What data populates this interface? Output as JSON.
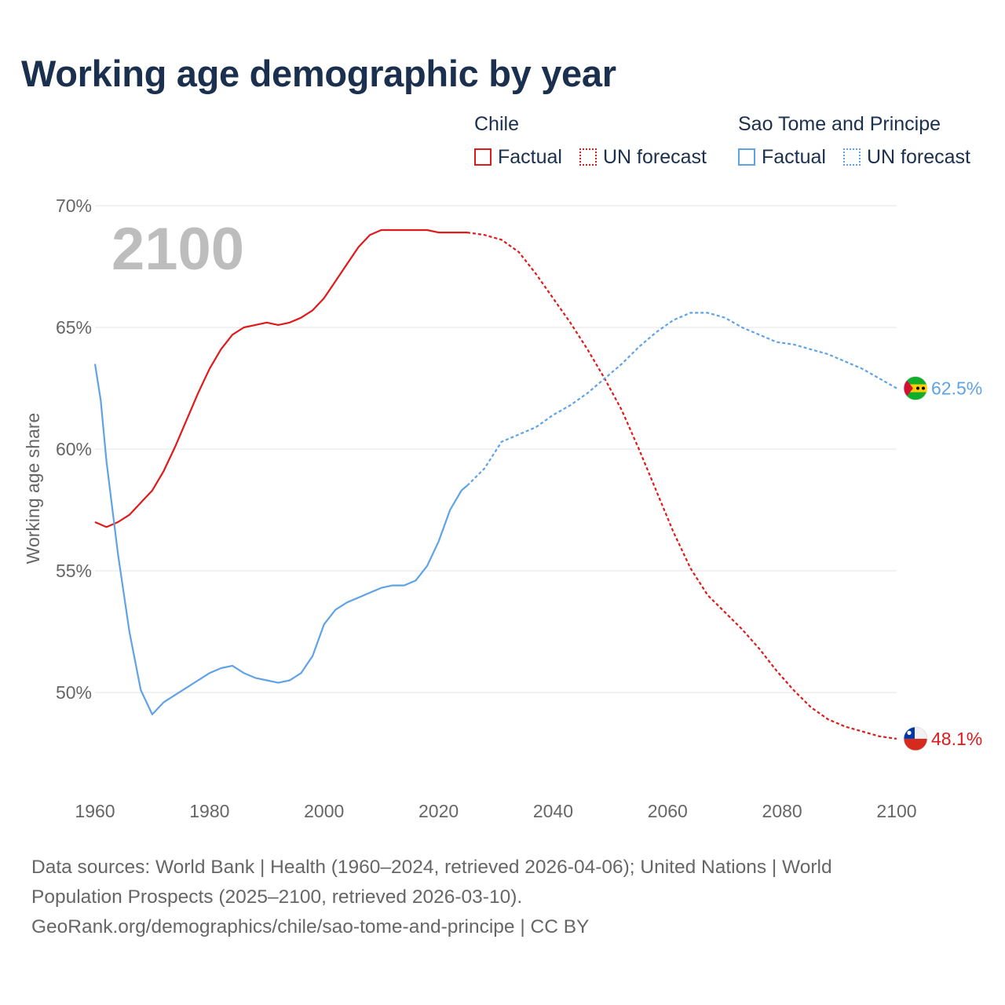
{
  "title": "Working age demographic by year",
  "legend": {
    "groups": [
      {
        "name": "Chile",
        "color": "#e0191b",
        "factual_label": "Factual",
        "forecast_label": "UN forecast"
      },
      {
        "name": "Sao Tome and Principe",
        "color": "#5fa3e6",
        "factual_label": "Factual",
        "forecast_label": "UN forecast"
      }
    ]
  },
  "year_overlay": "2100",
  "footer": {
    "line1": "Data sources: World Bank | Health (1960–2024, retrieved 2026-04-06); United Nations | World",
    "line2": "Population Prospects (2025–2100, retrieved 2026-03-10).",
    "line3": "GeoRank.org/demographics/chile/sao-tome-and-principe | CC BY"
  },
  "chart_data": {
    "type": "line",
    "title": "Working age demographic by year",
    "xlabel": "",
    "ylabel": "Working age share",
    "xlim": [
      1960,
      2100
    ],
    "ylim": [
      46.5,
      70
    ],
    "x_ticks": [
      1960,
      1980,
      2000,
      2020,
      2040,
      2060,
      2080,
      2100
    ],
    "x_tick_labels": [
      "1960",
      "1980",
      "2000",
      "2020",
      "2040",
      "2060",
      "2080",
      "2100"
    ],
    "y_ticks": [
      50,
      55,
      60,
      65,
      70
    ],
    "y_tick_labels": [
      "50%",
      "55%",
      "60%",
      "65%",
      "70%"
    ],
    "grid": true,
    "forecast_start": 2025,
    "series": [
      {
        "name": "Chile",
        "color": "#e0191b",
        "end_label": "48.1%",
        "flag": "chile-flag",
        "x": [
          1960,
          1962,
          1964,
          1966,
          1968,
          1970,
          1972,
          1974,
          1976,
          1978,
          1980,
          1982,
          1984,
          1986,
          1988,
          1990,
          1992,
          1994,
          1996,
          1998,
          2000,
          2002,
          2004,
          2006,
          2008,
          2010,
          2012,
          2014,
          2016,
          2018,
          2020,
          2022,
          2024,
          2025,
          2028,
          2031,
          2034,
          2037,
          2040,
          2043,
          2046,
          2049,
          2052,
          2055,
          2058,
          2061,
          2064,
          2067,
          2070,
          2073,
          2076,
          2079,
          2082,
          2085,
          2088,
          2091,
          2094,
          2097,
          2100
        ],
        "values": [
          57.0,
          56.8,
          57.0,
          57.3,
          57.8,
          58.3,
          59.1,
          60.1,
          61.2,
          62.3,
          63.3,
          64.1,
          64.7,
          65.0,
          65.1,
          65.2,
          65.1,
          65.2,
          65.4,
          65.7,
          66.2,
          66.9,
          67.6,
          68.3,
          68.8,
          69.0,
          69.0,
          69.0,
          69.0,
          69.0,
          68.9,
          68.9,
          68.9,
          68.9,
          68.8,
          68.6,
          68.1,
          67.2,
          66.2,
          65.2,
          64.1,
          62.9,
          61.6,
          60.0,
          58.3,
          56.6,
          55.1,
          54.0,
          53.3,
          52.6,
          51.8,
          50.9,
          50.1,
          49.4,
          48.9,
          48.6,
          48.4,
          48.2,
          48.1
        ]
      },
      {
        "name": "Sao Tome and Principe",
        "color": "#5fa3e6",
        "end_label": "62.5%",
        "flag": "sao-tome-flag",
        "x": [
          1960,
          1961,
          1962,
          1964,
          1966,
          1968,
          1970,
          1972,
          1974,
          1976,
          1978,
          1980,
          1982,
          1984,
          1986,
          1988,
          1990,
          1992,
          1994,
          1996,
          1998,
          2000,
          2002,
          2004,
          2006,
          2008,
          2010,
          2012,
          2014,
          2016,
          2018,
          2020,
          2022,
          2024,
          2025,
          2028,
          2031,
          2034,
          2037,
          2040,
          2043,
          2046,
          2049,
          2052,
          2055,
          2058,
          2061,
          2064,
          2067,
          2070,
          2073,
          2076,
          2079,
          2082,
          2085,
          2088,
          2091,
          2094,
          2097,
          2100
        ],
        "values": [
          63.5,
          62.0,
          59.5,
          55.7,
          52.5,
          50.1,
          49.1,
          49.6,
          49.9,
          50.2,
          50.5,
          50.8,
          51.0,
          51.1,
          50.8,
          50.6,
          50.5,
          50.4,
          50.5,
          50.8,
          51.5,
          52.8,
          53.4,
          53.7,
          53.9,
          54.1,
          54.3,
          54.4,
          54.4,
          54.6,
          55.2,
          56.2,
          57.5,
          58.3,
          58.5,
          59.2,
          60.3,
          60.6,
          60.9,
          61.4,
          61.8,
          62.3,
          62.9,
          63.5,
          64.2,
          64.8,
          65.3,
          65.6,
          65.6,
          65.4,
          65.0,
          64.7,
          64.4,
          64.3,
          64.1,
          63.9,
          63.6,
          63.3,
          62.9,
          62.5
        ]
      }
    ]
  }
}
